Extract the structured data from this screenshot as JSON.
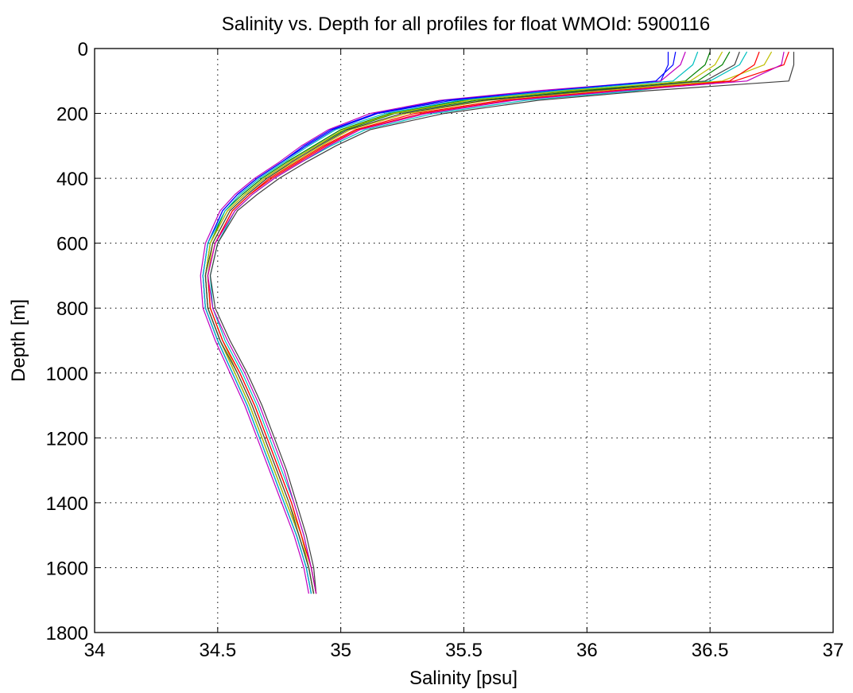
{
  "chart_data": {
    "type": "line",
    "title": "Salinity vs. Depth for all profiles for float WMOId: 5900116",
    "xlabel": "Salinity [psu]",
    "ylabel": "Depth [m]",
    "xlim": [
      34,
      37
    ],
    "ylim": [
      0,
      1800
    ],
    "y_reversed": true,
    "grid": true,
    "grid_style": "dotted",
    "legend": "none",
    "x_ticks": [
      34,
      34.5,
      35,
      35.5,
      36,
      36.5,
      37
    ],
    "x_tick_labels": [
      "34",
      "34.5",
      "35",
      "35.5",
      "36",
      "36.5",
      "37"
    ],
    "y_ticks": [
      0,
      200,
      400,
      600,
      800,
      1000,
      1200,
      1400,
      1600,
      1800
    ],
    "y_tick_labels": [
      "0",
      "200",
      "400",
      "600",
      "800",
      "1000",
      "1200",
      "1400",
      "1600",
      "1800"
    ],
    "depth_levels": [
      10,
      50,
      100,
      130,
      160,
      200,
      250,
      300,
      350,
      400,
      450,
      500,
      600,
      700,
      800,
      900,
      1000,
      1100,
      1200,
      1300,
      1400,
      1500,
      1600,
      1680
    ],
    "series_colors": [
      "#0000ff",
      "#008000",
      "#ff0000",
      "#00bfbf",
      "#bf00bf",
      "#bfbf00",
      "#404040"
    ],
    "series": [
      {
        "values": [
          36.33,
          36.33,
          36.3,
          35.9,
          35.45,
          35.15,
          34.97,
          34.86,
          34.76,
          34.66,
          34.58,
          34.52,
          34.46,
          34.44,
          34.45,
          34.5,
          34.56,
          34.62,
          34.67,
          34.72,
          34.77,
          34.82,
          34.86,
          34.88
        ]
      },
      {
        "values": [
          36.5,
          36.48,
          36.4,
          36.0,
          35.55,
          35.22,
          35.02,
          34.9,
          34.79,
          34.69,
          34.61,
          34.54,
          34.47,
          34.45,
          34.46,
          34.51,
          34.57,
          34.63,
          34.68,
          34.73,
          34.78,
          34.83,
          34.87,
          34.89
        ]
      },
      {
        "values": [
          36.82,
          36.8,
          36.6,
          36.1,
          35.65,
          35.3,
          35.06,
          34.93,
          34.82,
          34.71,
          34.63,
          34.56,
          34.49,
          34.46,
          34.47,
          34.52,
          34.59,
          34.65,
          34.7,
          34.75,
          34.8,
          34.84,
          34.88,
          34.9
        ]
      },
      {
        "values": [
          36.65,
          36.62,
          36.5,
          36.2,
          35.75,
          35.38,
          35.1,
          34.96,
          34.84,
          34.73,
          34.64,
          34.57,
          34.5,
          34.47,
          34.48,
          34.53,
          34.6,
          34.66,
          34.71,
          34.76,
          34.81,
          34.85,
          34.88,
          34.9
        ]
      },
      {
        "values": [
          36.4,
          36.38,
          36.3,
          35.8,
          35.4,
          35.12,
          34.95,
          34.84,
          34.75,
          34.65,
          34.57,
          34.51,
          34.45,
          34.43,
          34.44,
          34.49,
          34.55,
          34.61,
          34.66,
          34.71,
          34.76,
          34.81,
          34.85,
          34.87
        ]
      },
      {
        "values": [
          36.75,
          36.72,
          36.55,
          36.05,
          35.6,
          35.27,
          35.04,
          34.92,
          34.81,
          34.7,
          34.62,
          34.55,
          34.48,
          34.46,
          34.47,
          34.52,
          34.58,
          34.64,
          34.69,
          34.74,
          34.79,
          34.84,
          34.87,
          34.89
        ]
      },
      {
        "values": [
          36.84,
          36.84,
          36.82,
          36.25,
          35.8,
          35.42,
          35.12,
          34.98,
          34.86,
          34.75,
          34.66,
          34.58,
          34.5,
          34.47,
          34.49,
          34.55,
          34.62,
          34.68,
          34.73,
          34.78,
          34.82,
          34.86,
          34.89,
          34.9
        ]
      },
      {
        "values": [
          36.36,
          36.35,
          36.28,
          35.85,
          35.42,
          35.14,
          34.96,
          34.85,
          34.76,
          34.66,
          34.58,
          34.52,
          34.46,
          34.44,
          34.45,
          34.5,
          34.56,
          34.62,
          34.67,
          34.72,
          34.77,
          34.82,
          34.86,
          34.88
        ]
      },
      {
        "values": [
          36.58,
          36.55,
          36.45,
          35.95,
          35.5,
          35.2,
          35.0,
          34.89,
          34.78,
          34.68,
          34.6,
          34.53,
          34.47,
          34.45,
          34.46,
          34.51,
          34.57,
          34.63,
          34.68,
          34.73,
          34.78,
          34.83,
          34.87,
          34.89
        ]
      },
      {
        "values": [
          36.7,
          36.68,
          36.58,
          36.12,
          35.68,
          35.33,
          35.07,
          34.94,
          34.83,
          34.72,
          34.63,
          34.56,
          34.49,
          34.46,
          34.47,
          34.52,
          34.59,
          34.65,
          34.7,
          34.75,
          34.8,
          34.84,
          34.88,
          34.9
        ]
      },
      {
        "values": [
          36.45,
          36.43,
          36.35,
          35.88,
          35.48,
          35.18,
          34.98,
          34.87,
          34.77,
          34.67,
          34.59,
          34.53,
          34.46,
          34.44,
          34.45,
          34.5,
          34.56,
          34.62,
          34.67,
          34.72,
          34.77,
          34.82,
          34.86,
          34.88
        ]
      },
      {
        "values": [
          36.8,
          36.79,
          36.65,
          36.15,
          35.7,
          35.35,
          35.08,
          34.95,
          34.84,
          34.73,
          34.64,
          34.57,
          34.49,
          34.46,
          34.48,
          34.54,
          34.61,
          34.67,
          34.72,
          34.77,
          34.81,
          34.85,
          34.88,
          34.9
        ]
      },
      {
        "values": [
          36.55,
          36.52,
          36.42,
          35.92,
          35.52,
          35.21,
          35.01,
          34.9,
          34.79,
          34.69,
          34.61,
          34.54,
          34.47,
          34.45,
          34.46,
          34.51,
          34.57,
          34.63,
          34.68,
          34.73,
          34.78,
          34.83,
          34.87,
          34.89
        ]
      },
      {
        "values": [
          36.62,
          36.6,
          36.48,
          36.02,
          35.58,
          35.25,
          35.03,
          34.91,
          34.8,
          34.7,
          34.62,
          34.55,
          34.48,
          34.45,
          34.46,
          34.51,
          34.58,
          34.64,
          34.69,
          34.74,
          34.79,
          34.83,
          34.87,
          34.89
        ]
      }
    ]
  }
}
